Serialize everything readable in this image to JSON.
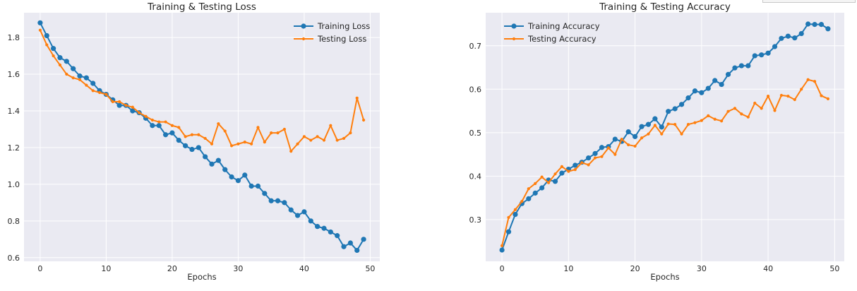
{
  "chart_data": [
    {
      "type": "line",
      "title": "Training & Testing Loss",
      "xlabel": "Epochs",
      "ylabel": "",
      "xlim": [
        -2.45,
        51.45
      ],
      "ylim": [
        0.58,
        1.935
      ],
      "xticks": [
        0,
        10,
        20,
        30,
        40,
        50
      ],
      "yticks": [
        0.6,
        0.8,
        1.0,
        1.2,
        1.4,
        1.6,
        1.8
      ],
      "grid": true,
      "legend": "top-right",
      "x": [
        0,
        1,
        2,
        3,
        4,
        5,
        6,
        7,
        8,
        9,
        10,
        11,
        12,
        13,
        14,
        15,
        16,
        17,
        18,
        19,
        20,
        21,
        22,
        23,
        24,
        25,
        26,
        27,
        28,
        29,
        30,
        31,
        32,
        33,
        34,
        35,
        36,
        37,
        38,
        39,
        40,
        41,
        42,
        43,
        44,
        45,
        46,
        47,
        48,
        49
      ],
      "series": [
        {
          "name": "Training Loss",
          "color": "#1f77b4",
          "marker": "circle",
          "values": [
            1.88,
            1.81,
            1.74,
            1.69,
            1.67,
            1.63,
            1.59,
            1.58,
            1.55,
            1.51,
            1.49,
            1.46,
            1.43,
            1.43,
            1.4,
            1.39,
            1.36,
            1.32,
            1.32,
            1.27,
            1.28,
            1.24,
            1.21,
            1.19,
            1.2,
            1.15,
            1.11,
            1.13,
            1.08,
            1.04,
            1.02,
            1.05,
            0.99,
            0.99,
            0.95,
            0.91,
            0.91,
            0.9,
            0.86,
            0.83,
            0.85,
            0.8,
            0.77,
            0.76,
            0.74,
            0.72,
            0.66,
            0.68,
            0.64,
            0.7
          ]
        },
        {
          "name": "Testing Loss",
          "color": "#ff7f0e",
          "marker": "small-circle",
          "values": [
            1.84,
            1.76,
            1.7,
            1.65,
            1.6,
            1.58,
            1.57,
            1.54,
            1.51,
            1.5,
            1.49,
            1.45,
            1.45,
            1.43,
            1.42,
            1.39,
            1.37,
            1.35,
            1.34,
            1.34,
            1.32,
            1.31,
            1.26,
            1.27,
            1.27,
            1.25,
            1.22,
            1.33,
            1.29,
            1.21,
            1.22,
            1.23,
            1.22,
            1.31,
            1.23,
            1.28,
            1.28,
            1.3,
            1.18,
            1.22,
            1.26,
            1.24,
            1.26,
            1.24,
            1.32,
            1.24,
            1.25,
            1.28,
            1.47,
            1.35
          ]
        }
      ]
    },
    {
      "type": "line",
      "title": "Training & Testing Accuracy",
      "xlabel": "Epochs",
      "ylabel": "",
      "xlim": [
        -2.45,
        51.45
      ],
      "ylim": [
        0.204,
        0.776
      ],
      "xticks": [
        0,
        10,
        20,
        30,
        40,
        50
      ],
      "yticks": [
        0.3,
        0.4,
        0.5,
        0.6,
        0.7
      ],
      "grid": true,
      "legend": "top-left",
      "x": [
        0,
        1,
        2,
        3,
        4,
        5,
        6,
        7,
        8,
        9,
        10,
        11,
        12,
        13,
        14,
        15,
        16,
        17,
        18,
        19,
        20,
        21,
        22,
        23,
        24,
        25,
        26,
        27,
        28,
        29,
        30,
        31,
        32,
        33,
        34,
        35,
        36,
        37,
        38,
        39,
        40,
        41,
        42,
        43,
        44,
        45,
        46,
        47,
        48,
        49
      ],
      "series": [
        {
          "name": "Training Accuracy",
          "color": "#1f77b4",
          "marker": "circle",
          "values": [
            0.23,
            0.272,
            0.312,
            0.337,
            0.348,
            0.361,
            0.373,
            0.391,
            0.388,
            0.407,
            0.416,
            0.425,
            0.432,
            0.442,
            0.452,
            0.466,
            0.468,
            0.485,
            0.48,
            0.502,
            0.491,
            0.514,
            0.519,
            0.532,
            0.513,
            0.549,
            0.555,
            0.565,
            0.58,
            0.596,
            0.592,
            0.602,
            0.62,
            0.611,
            0.634,
            0.649,
            0.654,
            0.654,
            0.677,
            0.679,
            0.683,
            0.698,
            0.717,
            0.722,
            0.718,
            0.728,
            0.75,
            0.749,
            0.749,
            0.739
          ]
        },
        {
          "name": "Testing Accuracy",
          "color": "#ff7f0e",
          "marker": "small-circle",
          "values": [
            0.24,
            0.305,
            0.323,
            0.342,
            0.371,
            0.383,
            0.398,
            0.385,
            0.405,
            0.422,
            0.411,
            0.415,
            0.431,
            0.426,
            0.442,
            0.445,
            0.465,
            0.45,
            0.485,
            0.472,
            0.469,
            0.488,
            0.497,
            0.517,
            0.497,
            0.52,
            0.519,
            0.497,
            0.519,
            0.523,
            0.528,
            0.539,
            0.531,
            0.527,
            0.549,
            0.556,
            0.543,
            0.536,
            0.568,
            0.556,
            0.584,
            0.551,
            0.586,
            0.584,
            0.576,
            0.6,
            0.622,
            0.618,
            0.585,
            0.578
          ]
        }
      ]
    }
  ]
}
